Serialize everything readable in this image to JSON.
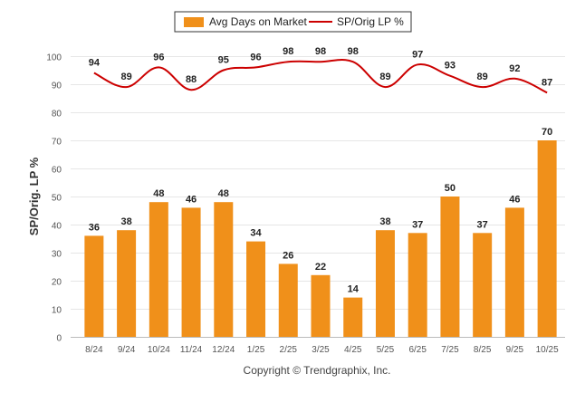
{
  "chart_data": {
    "type": "bar",
    "categories": [
      "8/24",
      "9/24",
      "10/24",
      "11/24",
      "12/24",
      "1/25",
      "2/25",
      "3/25",
      "4/25",
      "5/25",
      "6/25",
      "7/25",
      "8/25",
      "9/25",
      "10/25"
    ],
    "series": [
      {
        "name": "Avg Days on Market",
        "type": "bar",
        "color": "#f0901a",
        "values": [
          36,
          38,
          48,
          46,
          48,
          34,
          26,
          22,
          14,
          38,
          37,
          50,
          37,
          46,
          70
        ]
      },
      {
        "name": "SP/Orig LP %",
        "type": "line",
        "color": "#cc0000",
        "values": [
          94,
          89,
          96,
          88,
          95,
          96,
          98,
          98,
          98,
          89,
          97,
          93,
          89,
          92,
          87
        ]
      }
    ],
    "xlabel": "",
    "ylabel": "SP/Orig. LP %",
    "ylim": [
      0,
      100
    ],
    "yticks": [
      0,
      10,
      20,
      30,
      40,
      50,
      60,
      70,
      80,
      90,
      100
    ],
    "legend_position": "top-center",
    "grid": true
  },
  "legend": {
    "bar_label": "Avg Days on Market",
    "line_label": "SP/Orig LP %"
  },
  "footer": {
    "copyright": "Copyright © Trendgraphix, Inc."
  }
}
